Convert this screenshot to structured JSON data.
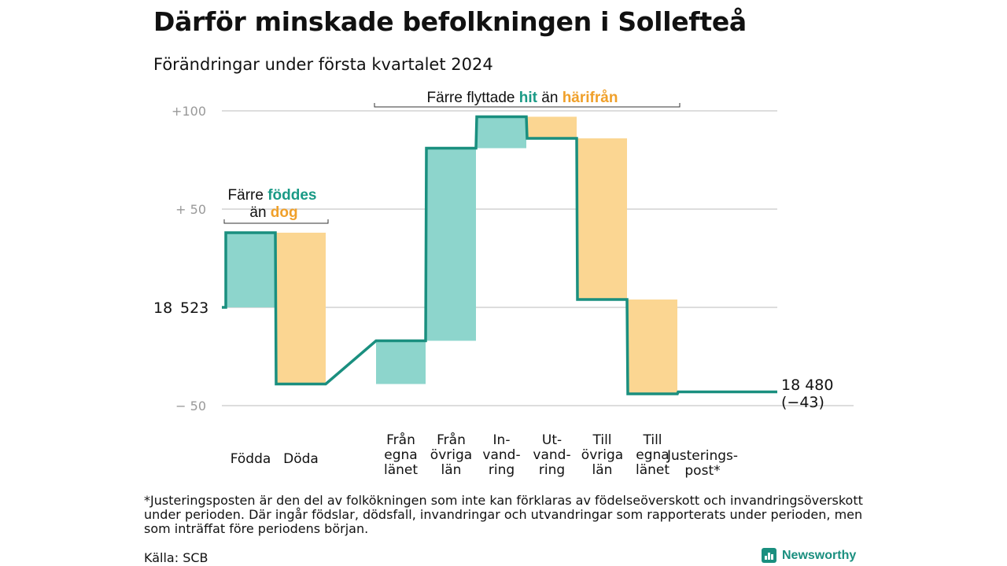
{
  "chart_data": {
    "type": "waterfall",
    "title": "Därför minskade befolkningen i Sollefteå",
    "subtitle": "Förändringar under första kvartalet 2024",
    "start": {
      "label_a": "18",
      "label_b": "523",
      "value": 18523
    },
    "end": {
      "line1": "18 480",
      "line2": "(−43)",
      "value": 18480
    },
    "y_ticks": [
      {
        "value": 100,
        "label": "+100"
      },
      {
        "value": 50,
        "label": "+  50"
      },
      {
        "value": 0,
        "label": ""
      },
      {
        "value": -50,
        "label": "−  50"
      }
    ],
    "ylim": [
      -50,
      100
    ],
    "categories": [
      {
        "lines": [
          "Födda"
        ],
        "value": 38,
        "kind": "in"
      },
      {
        "lines": [
          "Döda"
        ],
        "value": -77,
        "kind": "out"
      },
      {
        "lines": [
          "Från",
          "egna",
          "länet"
        ],
        "value": 22,
        "kind": "in"
      },
      {
        "lines": [
          "Från",
          "övriga",
          "län"
        ],
        "value": 98,
        "kind": "in"
      },
      {
        "lines": [
          "In-",
          "vand-",
          "ring"
        ],
        "value": 16,
        "kind": "in"
      },
      {
        "lines": [
          "Ut-",
          "vand-",
          "ring"
        ],
        "value": -11,
        "kind": "out"
      },
      {
        "lines": [
          "Till",
          "övriga",
          "län"
        ],
        "value": -82,
        "kind": "out"
      },
      {
        "lines": [
          "Till",
          "egna",
          "länet"
        ],
        "value": -48,
        "kind": "out"
      },
      {
        "lines": [
          "Justerings-",
          "post*"
        ],
        "value": 1,
        "kind": "adj"
      }
    ],
    "annotations": [
      {
        "line1_a": "Färre",
        "line1_b": "föddes",
        "line2_a": "än",
        "line2_b": "dog"
      },
      {
        "line1_a": "Färre flyttade",
        "line1_b": "hit",
        "line2_a": "än",
        "line2_b": "härifrån"
      }
    ],
    "colors": {
      "in": "#8dd5cc",
      "out": "#fbd692",
      "line": "#1a8f7f",
      "grid": "#dddddd",
      "in_text": "#1a9a86",
      "out_text": "#f0a02a"
    }
  },
  "footnote": "*Justeringsposten är den del av folkökningen som inte kan förklaras av födelseöverskott och invandringsöverskott under perioden. Där ingår födslar, dödsfall, invandringar och utvandringar som rapporterats under perioden, men som inträffat före periodens början.",
  "source": "Källa: SCB",
  "brand": "Newsworthy"
}
